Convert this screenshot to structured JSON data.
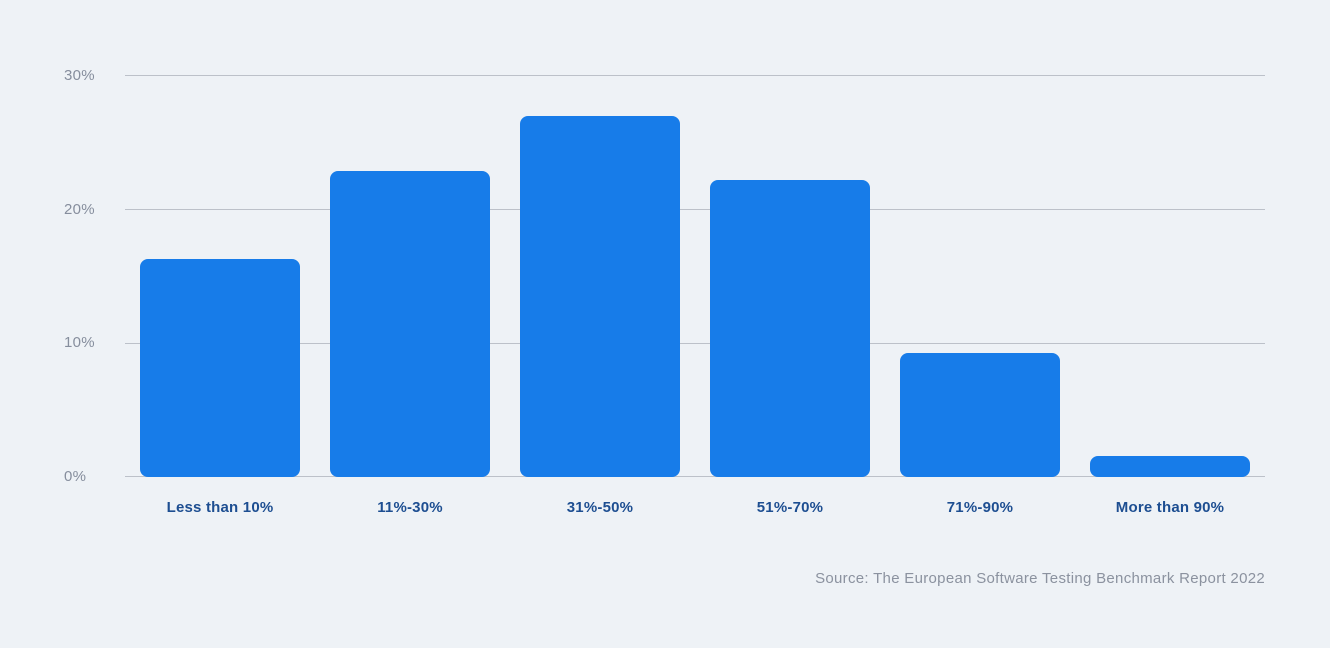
{
  "page": {
    "background_color": "#eef2f6",
    "bottom_strip_color": "#ffffff"
  },
  "source_note": "Source: The European Software Testing Benchmark Report 2022",
  "chart_data": {
    "type": "bar",
    "title": "",
    "xlabel": "",
    "ylabel": "",
    "categories": [
      "Less than 10%",
      "11%-30%",
      "31%-50%",
      "51%-70%",
      "71%-90%",
      "More than 90%"
    ],
    "values": [
      16.3,
      22.9,
      27.0,
      22.2,
      9.3,
      1.6
    ],
    "ylim": [
      0,
      30
    ],
    "yticks": [
      0,
      10,
      20,
      30
    ],
    "ytick_labels": [
      "0%",
      "10%",
      "20%",
      "30%"
    ],
    "grid": true,
    "legend": "none",
    "bar_color": "#177ce9",
    "gridline_color": "#bcc1c9",
    "ytick_label_color": "#868e9d",
    "category_label_color": "#1d4e91",
    "source_note_color": "#8b929f"
  }
}
